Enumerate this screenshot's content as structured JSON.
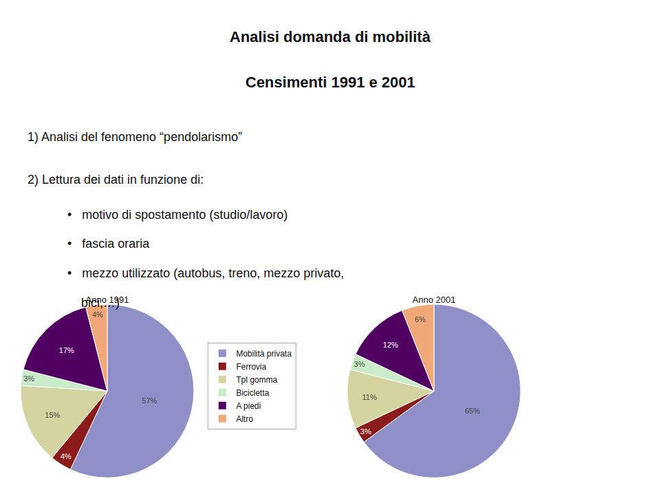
{
  "title": [
    "Analisi domanda di mobilità",
    "Censimenti 1991 e 2001"
  ],
  "annotations": [
    "1) Analisi del fenomeno “pendolarismo”",
    "2) Lettura dei dati in funzione di:",
    "•   motivo di spostamento (studio/lavoro)",
    "•   fascia oraria",
    "•   mezzo utilizzato (autobus, treno, mezzo privato,",
    "    bici,…)"
  ],
  "chart_data": [
    {
      "type": "pie",
      "title": "Anno 1991",
      "categories": [
        "Mobilità privata",
        "Ferrovia",
        "Tpl gomma",
        "Bicicletta",
        "A piedi",
        "Altro"
      ],
      "values": [
        57,
        4,
        15,
        3,
        17,
        4
      ],
      "value_labels": [
        "57%",
        "4%",
        "15%",
        "3%",
        "17%",
        "4%"
      ],
      "colors": [
        "#9090c8",
        "#8b1a1a",
        "#d4d4a0",
        "#c8ecc8",
        "#500060",
        "#f0a878"
      ],
      "data_labels": true,
      "legend": "right"
    },
    {
      "type": "pie",
      "title": "Anno 2001",
      "categories": [
        "Mobilità privata",
        "Ferrovia",
        "Tpl gomma",
        "Bicicletta",
        "A piedi",
        "Altro"
      ],
      "values": [
        65,
        3,
        11,
        3,
        12,
        6
      ],
      "value_labels": [
        "65%",
        "3%",
        "11%",
        "3%",
        "12%",
        "6%"
      ],
      "colors": [
        "#9090c8",
        "#8b1a1a",
        "#d4d4a0",
        "#c8ecc8",
        "#500060",
        "#f0a878"
      ],
      "data_labels": true,
      "legend": "right"
    }
  ]
}
